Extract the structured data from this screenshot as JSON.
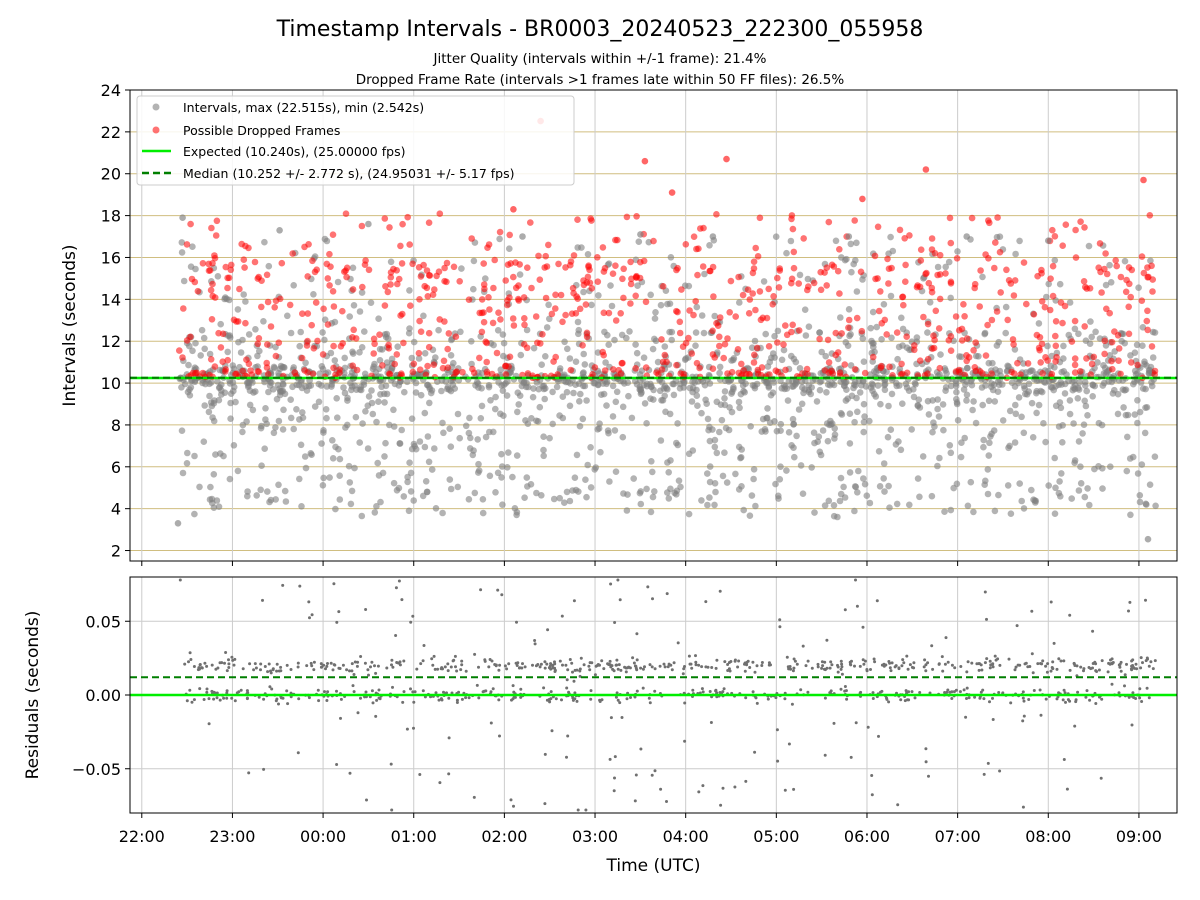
{
  "chart_data": [
    {
      "type": "scatter",
      "panel": "intervals",
      "title": "Timestamp Intervals - BR0003_20240523_222300_055958",
      "subtitles": [
        "Jitter Quality (intervals within +/-1 frame): 21.4%",
        "Dropped Frame Rate (intervals >1 frames late within 50 FF files): 26.5%"
      ],
      "ylabel": "Intervals (seconds)",
      "ylim": [
        1.5,
        24
      ],
      "yticks": [
        2,
        4,
        6,
        8,
        10,
        12,
        14,
        16,
        18,
        20,
        22,
        24
      ],
      "xlim_hours": [
        21.87,
        33.42
      ],
      "time_start_hours": 22.4,
      "time_end_hours": 33.2,
      "grid": "horizontal",
      "legend_position": "top-left",
      "series": [
        {
          "name": "Intervals, max (22.515s), min (2.542s)",
          "color": "#808080",
          "max": 22.515,
          "min": 2.542,
          "approx_count": 1900
        },
        {
          "name": "Possible Dropped Frames",
          "color": "#ff0000",
          "approx_count": 800
        }
      ],
      "lines": [
        {
          "name": "Expected (10.240s), (25.00000 fps)",
          "value": 10.24,
          "color": "#00ee00",
          "style": "solid"
        },
        {
          "name": "Median (10.252 +/- 2.772 s), (24.95031 +/- 5.17 fps)",
          "value": 10.252,
          "color": "#007f00",
          "style": "dashed"
        }
      ],
      "highlighted_points": [
        {
          "t": 22.45,
          "y": 17.9,
          "series": "Intervals"
        },
        {
          "t": 23.52,
          "y": 17.3,
          "series": "Intervals"
        },
        {
          "t": 24.5,
          "y": 17.6,
          "series": "Intervals"
        },
        {
          "t": 26.2,
          "y": 17.0,
          "series": "Intervals"
        },
        {
          "t": 27.5,
          "y": 17.1,
          "series": "Intervals"
        },
        {
          "t": 28.3,
          "y": 17.0,
          "series": "Intervals"
        },
        {
          "t": 29.8,
          "y": 17.0,
          "series": "Intervals"
        },
        {
          "t": 31.1,
          "y": 17.0,
          "series": "Intervals"
        },
        {
          "t": 32.0,
          "y": 16.8,
          "series": "Intervals"
        },
        {
          "t": 33.1,
          "y": 2.542,
          "series": "Intervals"
        },
        {
          "t": 22.4,
          "y": 3.3,
          "series": "Intervals"
        },
        {
          "t": 26.4,
          "y": 22.515,
          "series": "Possible Dropped Frames"
        },
        {
          "t": 27.55,
          "y": 20.6,
          "series": "Possible Dropped Frames"
        },
        {
          "t": 28.45,
          "y": 20.7,
          "series": "Possible Dropped Frames"
        },
        {
          "t": 30.65,
          "y": 20.2,
          "series": "Possible Dropped Frames"
        },
        {
          "t": 27.85,
          "y": 19.1,
          "series": "Possible Dropped Frames"
        },
        {
          "t": 33.05,
          "y": 19.7,
          "series": "Possible Dropped Frames"
        },
        {
          "t": 29.95,
          "y": 18.8,
          "series": "Possible Dropped Frames"
        },
        {
          "t": 26.1,
          "y": 18.3,
          "series": "Possible Dropped Frames"
        }
      ]
    },
    {
      "type": "scatter",
      "panel": "residuals",
      "xlabel": "Time (UTC)",
      "ylabel": "Residuals (seconds)",
      "ylim": [
        -0.08,
        0.08
      ],
      "yticks": [
        0.05,
        0.0,
        -0.05
      ],
      "ytick_labels": [
        "0.05",
        "0.00",
        "−0.05"
      ],
      "xlim_hours": [
        21.87,
        33.42
      ],
      "xticks_hours": [
        22,
        23,
        24,
        25,
        26,
        27,
        28,
        29,
        30,
        31,
        32,
        33
      ],
      "xtick_labels": [
        "22:00",
        "23:00",
        "00:00",
        "01:00",
        "02:00",
        "03:00",
        "04:00",
        "05:00",
        "06:00",
        "07:00",
        "08:00",
        "09:00"
      ],
      "grid": "both",
      "series": [
        {
          "name": "Residuals",
          "color": "#707070",
          "approx_count": 1000
        }
      ],
      "lines": [
        {
          "name": "Expected",
          "value": 0.0,
          "color": "#00ee00",
          "style": "solid"
        },
        {
          "name": "Median",
          "value": 0.012,
          "color": "#007f00",
          "style": "dashed"
        }
      ]
    }
  ]
}
